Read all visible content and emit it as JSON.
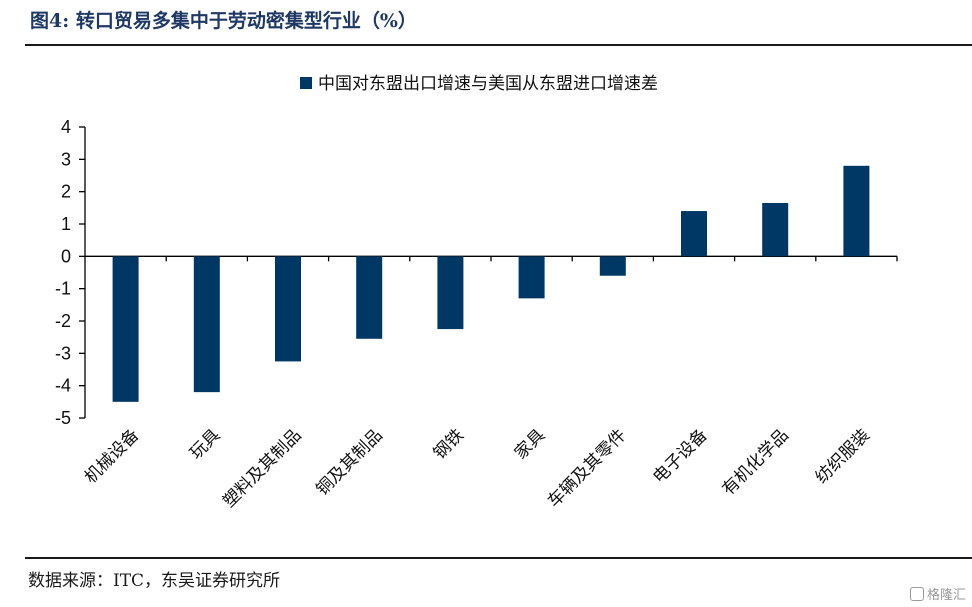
{
  "header": {
    "figure_label": "图4:",
    "title": "转口贸易多集中于劳动密集型行业（%）"
  },
  "footer": {
    "source": "数据来源：ITC，东吴证券研究所",
    "watermark": "格隆汇"
  },
  "colors": {
    "bar": "#003865",
    "title": "#1f3864",
    "axis": "#000000"
  },
  "chart_data": {
    "type": "bar",
    "title": "转口贸易多集中于劳动密集型行业（%）",
    "xlabel": "",
    "ylabel": "",
    "legend_position": "top-center",
    "categories": [
      "机械设备",
      "玩具",
      "塑料及其制品",
      "铜及其制品",
      "钢铁",
      "家具",
      "车辆及其零件",
      "电子设备",
      "有机化学品",
      "纺织服装"
    ],
    "series": [
      {
        "name": "中国对东盟出口增速与美国从东盟进口增速差",
        "values": [
          -4.5,
          -4.2,
          -3.25,
          -2.55,
          -2.25,
          -1.3,
          -0.6,
          1.4,
          1.65,
          2.8
        ]
      }
    ],
    "ylim": [
      -5,
      4
    ],
    "yticks": [
      4,
      3,
      2,
      1,
      0,
      -1,
      -2,
      -3,
      -4,
      -5
    ],
    "grid": false
  }
}
